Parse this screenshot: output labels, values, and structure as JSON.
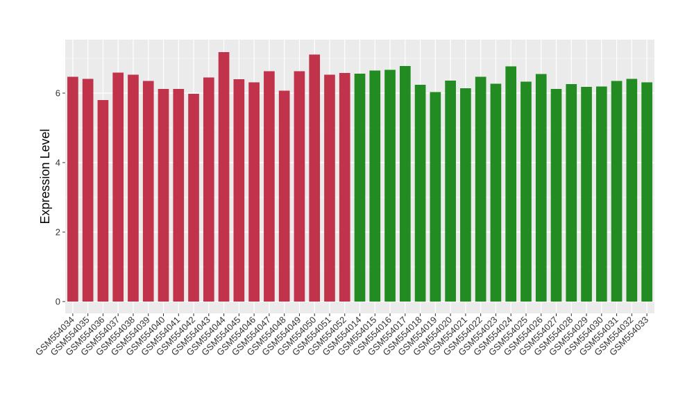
{
  "chart_data": {
    "type": "bar",
    "ylabel": "Expression Level",
    "xlabel": "",
    "ylim": [
      0,
      7.5
    ],
    "yticks": [
      0,
      2,
      4,
      6
    ],
    "grid": true,
    "colors": {
      "group_a": "#c0334a",
      "group_b": "#228b22",
      "panel": "#ebebeb",
      "gridline": "#ffffff"
    },
    "categories": [
      "GSM554034",
      "GSM554035",
      "GSM554036",
      "GSM554037",
      "GSM554038",
      "GSM554039",
      "GSM554040",
      "GSM554041",
      "GSM554042",
      "GSM554043",
      "GSM554044",
      "GSM554045",
      "GSM554046",
      "GSM554047",
      "GSM554048",
      "GSM554049",
      "GSM554050",
      "GSM554051",
      "GSM554052",
      "GSM554014",
      "GSM554015",
      "GSM554016",
      "GSM554017",
      "GSM554018",
      "GSM554019",
      "GSM554020",
      "GSM554021",
      "GSM554022",
      "GSM554023",
      "GSM554024",
      "GSM554025",
      "GSM554026",
      "GSM554027",
      "GSM554028",
      "GSM554029",
      "GSM554030",
      "GSM554031",
      "GSM554032",
      "GSM554033"
    ],
    "values": [
      6.47,
      6.41,
      5.8,
      6.59,
      6.53,
      6.35,
      6.12,
      6.12,
      5.98,
      6.45,
      7.18,
      6.4,
      6.31,
      6.63,
      6.07,
      6.63,
      7.11,
      6.53,
      6.58,
      6.56,
      6.65,
      6.67,
      6.78,
      6.24,
      6.03,
      6.36,
      6.14,
      6.47,
      6.27,
      6.77,
      6.33,
      6.55,
      6.12,
      6.26,
      6.18,
      6.19,
      6.35,
      6.41,
      6.31
    ],
    "group": [
      "a",
      "a",
      "a",
      "a",
      "a",
      "a",
      "a",
      "a",
      "a",
      "a",
      "a",
      "a",
      "a",
      "a",
      "a",
      "a",
      "a",
      "a",
      "a",
      "b",
      "b",
      "b",
      "b",
      "b",
      "b",
      "b",
      "b",
      "b",
      "b",
      "b",
      "b",
      "b",
      "b",
      "b",
      "b",
      "b",
      "b",
      "b",
      "b"
    ]
  }
}
